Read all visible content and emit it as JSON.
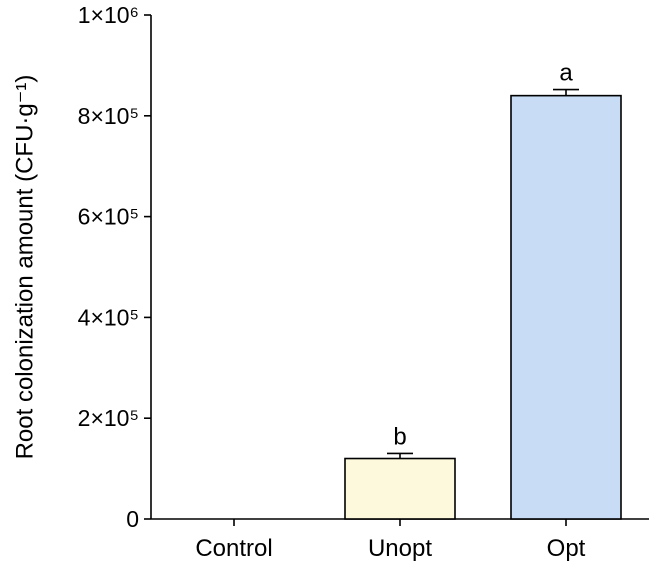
{
  "chart_data": {
    "type": "bar",
    "y_label": "Root colonization amount (CFU·g⁻¹)",
    "categories": [
      "Control",
      "Unopt",
      "Opt"
    ],
    "values": [
      0,
      120000,
      840000
    ],
    "errors": [
      null,
      10000,
      12000
    ],
    "letters": [
      null,
      "b",
      "a"
    ],
    "colors": [
      "#ffffff",
      "#fdf9dd",
      "#c9dcf6"
    ],
    "ylim": [
      0,
      1000000
    ],
    "yticks": [
      {
        "value": 0,
        "label": "0"
      },
      {
        "value": 200000,
        "label": "2×10⁵"
      },
      {
        "value": 400000,
        "label": "4×10⁵"
      },
      {
        "value": 600000,
        "label": "6×10⁵"
      },
      {
        "value": 800000,
        "label": "8×10⁵"
      },
      {
        "value": 1000000,
        "label": "1×10⁶"
      }
    ],
    "grid": false
  }
}
